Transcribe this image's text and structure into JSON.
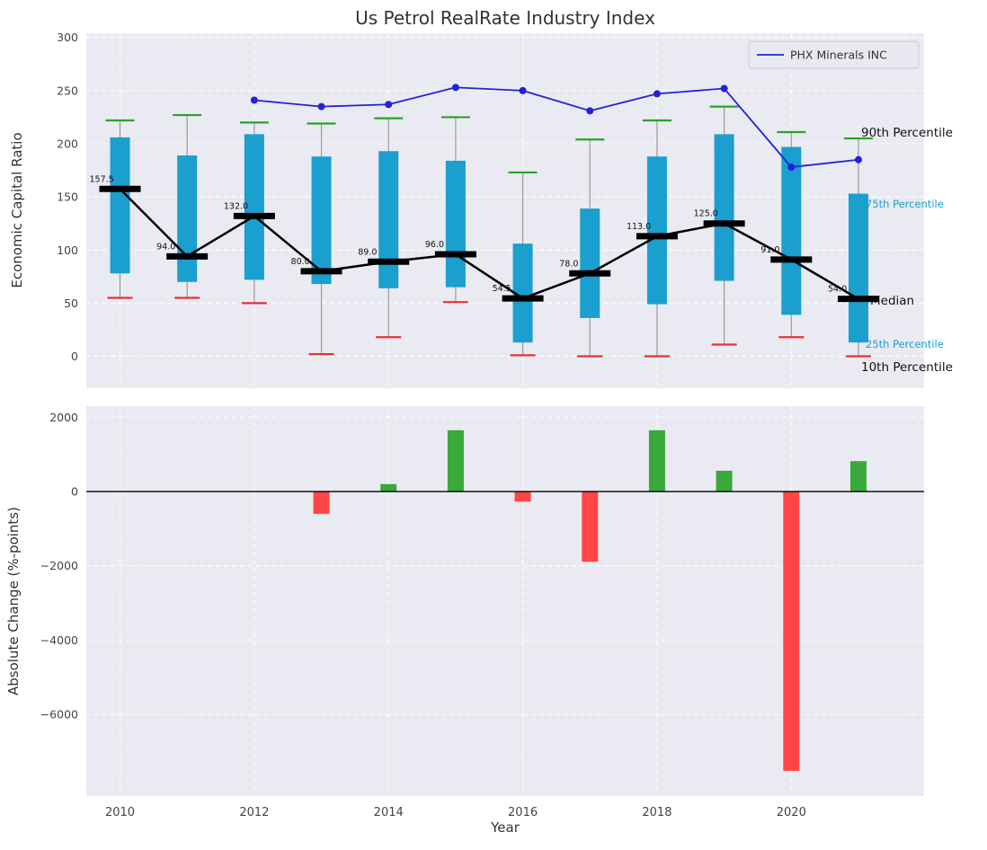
{
  "legend": {
    "label": "PHX Minerals INC"
  },
  "annotations": {
    "p90": "90th Percentile",
    "p75": "75th Percentile",
    "median": "Median",
    "p25": "25th Percentile",
    "p10": "10th Percentile"
  },
  "colors": {
    "axes_bg": "#eaeaf2",
    "grid": "#ffffff",
    "box": "#1a9fce",
    "median_line": "#000000",
    "cap_top": "#2ca02c",
    "cap_bottom": "#e63333",
    "whisker": "#9a9a9a",
    "phx_line": "#2121de",
    "bar_pos": "#3aa83a",
    "bar_neg": "#ff4545",
    "tick": "#444444"
  },
  "chart_data": [
    {
      "type": "boxplot-line",
      "title": "Us Petrol RealRate Industry Index",
      "ylabel": "Economic Capital Ratio",
      "ylim": [
        -30,
        304
      ],
      "yticks": [
        300,
        250,
        200,
        150,
        100,
        50,
        0
      ],
      "grid": true,
      "legend_position": "upper right",
      "categories": [
        2010,
        2011,
        2012,
        2013,
        2014,
        2015,
        2016,
        2017,
        2018,
        2019,
        2020,
        2021
      ],
      "series": [
        {
          "name": "90th Percentile",
          "values": [
            222,
            227,
            220,
            219,
            224,
            225,
            173,
            204,
            222,
            235,
            211,
            205
          ]
        },
        {
          "name": "75th Percentile",
          "values": [
            206,
            189,
            209,
            188,
            193,
            184,
            106,
            139,
            188,
            209,
            197,
            153
          ]
        },
        {
          "name": "Median",
          "values": [
            157.5,
            94.0,
            132.0,
            80.0,
            89.0,
            96.0,
            54.5,
            78.0,
            113.0,
            125.0,
            91.0,
            54.0
          ]
        },
        {
          "name": "25th Percentile",
          "values": [
            78,
            70,
            72,
            68,
            64,
            65,
            13,
            36,
            49,
            71,
            39,
            13
          ]
        },
        {
          "name": "10th Percentile",
          "values": [
            55,
            55,
            50,
            2,
            18,
            51,
            1,
            0,
            0,
            11,
            18,
            0
          ]
        },
        {
          "name": "PHX Minerals INC",
          "values": [
            null,
            null,
            241,
            235,
            237,
            253,
            250,
            231,
            247,
            252,
            178,
            185
          ]
        }
      ],
      "median_labels": [
        "157.5",
        "94.0",
        "132.0",
        "80.0",
        "89.0",
        "96.0",
        "54.5",
        "78.0",
        "113.0",
        "125.0",
        "91.0",
        "54.0"
      ]
    },
    {
      "type": "bar",
      "ylabel": "Absolute Change (%-points)",
      "xlabel": "Year",
      "ylim": [
        -8200,
        2300
      ],
      "yticks": [
        2000,
        0,
        -2000,
        -4000,
        -6000
      ],
      "xticks": [
        2010,
        2012,
        2014,
        2016,
        2018,
        2020
      ],
      "grid": true,
      "categories": [
        2010,
        2011,
        2012,
        2013,
        2014,
        2015,
        2016,
        2017,
        2018,
        2019,
        2020,
        2021
      ],
      "values": [
        null,
        null,
        null,
        -600,
        200,
        1650,
        -270,
        -1890,
        1650,
        560,
        -7520,
        820
      ]
    }
  ]
}
